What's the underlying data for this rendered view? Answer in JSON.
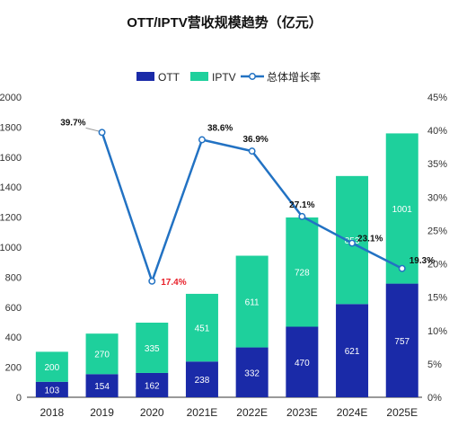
{
  "chart_data": {
    "type": "bar",
    "stacked": true,
    "title": "OTT/IPTV营收规模趋势（亿元）",
    "categories": [
      "2018",
      "2019",
      "2020",
      "2021E",
      "2022E",
      "2023E",
      "2024E",
      "2025E"
    ],
    "series": [
      {
        "name": "OTT",
        "type": "bar",
        "axis": "left",
        "color": "#1a2aa8",
        "values": [
          103,
          154,
          162,
          238,
          332,
          470,
          621,
          757
        ]
      },
      {
        "name": "IPTV",
        "type": "bar",
        "axis": "left",
        "color": "#1ed09c",
        "values": [
          200,
          270,
          335,
          451,
          611,
          728,
          853,
          1001
        ]
      },
      {
        "name": "总体增长率",
        "type": "line",
        "axis": "right",
        "color": "#2272c3",
        "values": [
          null,
          39.7,
          17.4,
          38.6,
          36.9,
          27.1,
          23.1,
          19.3
        ],
        "labels": [
          "",
          "39.7%",
          "17.4%",
          "38.6%",
          "36.9%",
          "27.1%",
          "23.1%",
          "19.3%"
        ]
      }
    ],
    "y_left": {
      "min": 0,
      "max": 2000,
      "step": 200,
      "ticks": [
        "0",
        "200",
        "400",
        "600",
        "800",
        "1000",
        "1200",
        "1400",
        "1600",
        "1800",
        "2000"
      ]
    },
    "y_right": {
      "min": 0,
      "max": 45,
      "step": 5,
      "ticks": [
        "0%",
        "5%",
        "10%",
        "15%",
        "20%",
        "25%",
        "30%",
        "35%",
        "40%",
        "45%"
      ]
    },
    "highlight_color": "#e8202a",
    "highlight_label": "17.4%",
    "legend_position": "top-center",
    "grid": false
  }
}
